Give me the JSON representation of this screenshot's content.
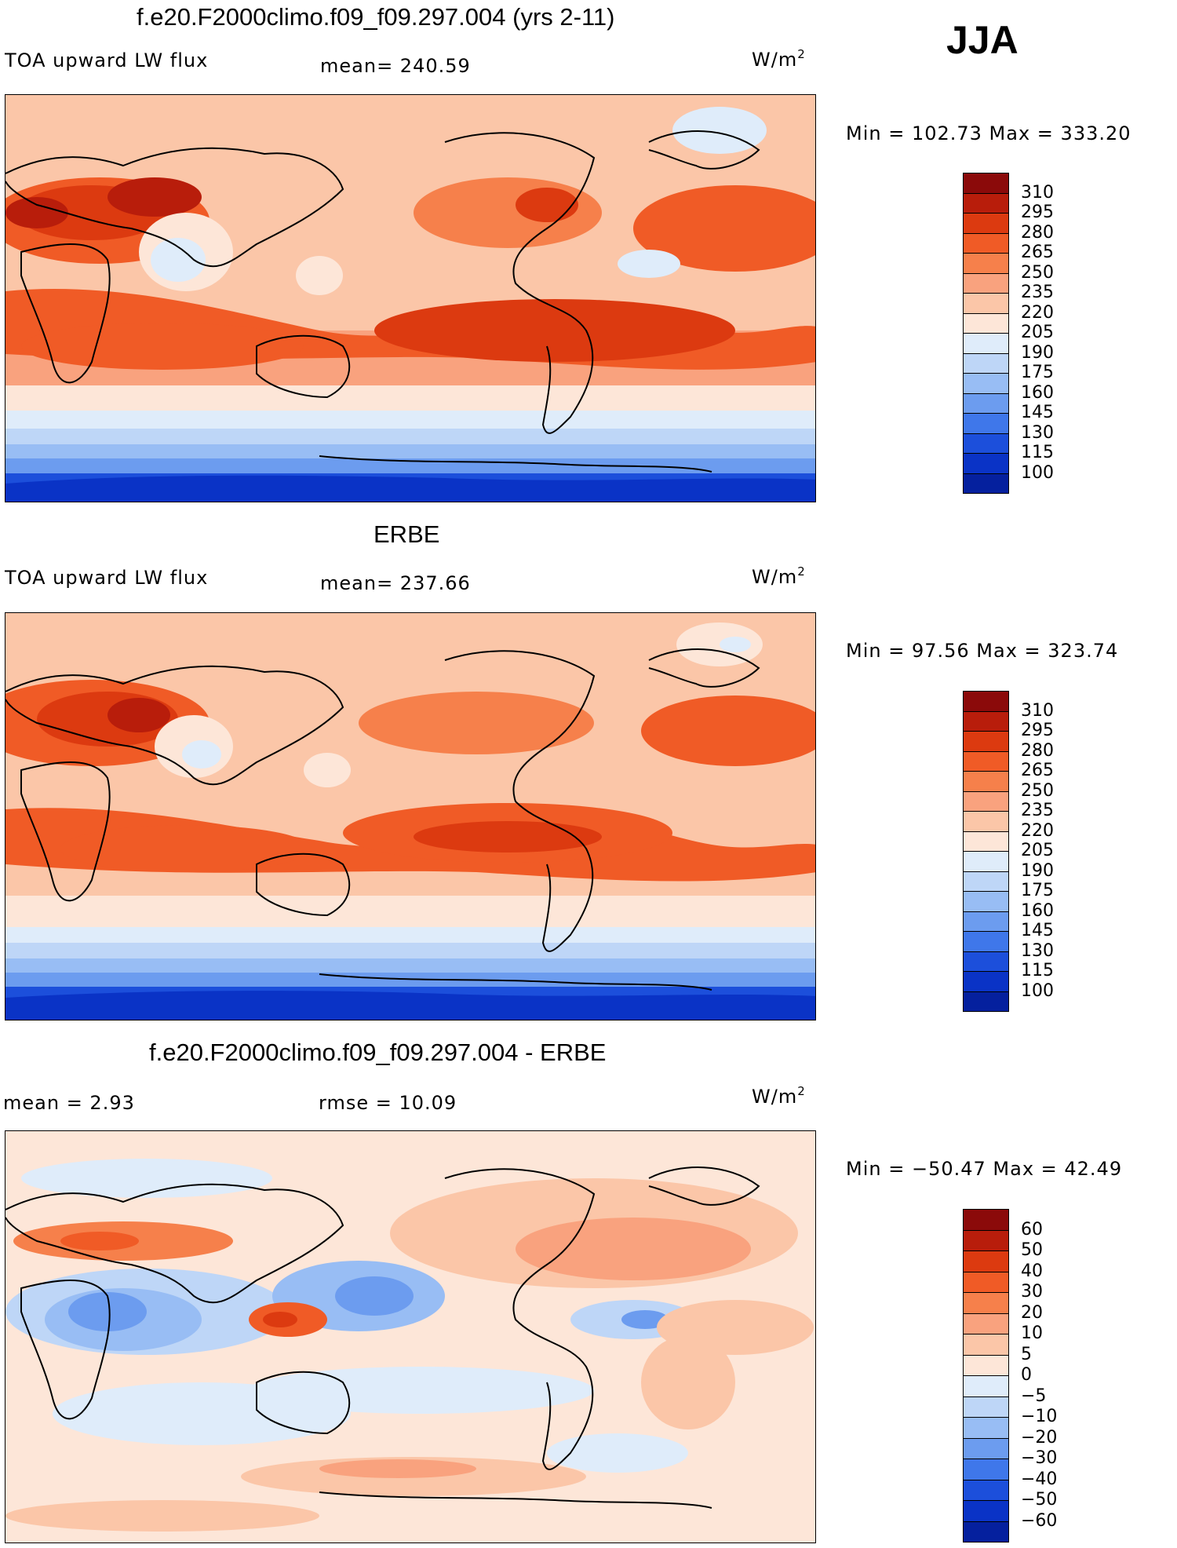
{
  "season": "JJA",
  "panels": [
    {
      "id": "model",
      "title": "f.e20.F2000climo.f09_f09.297.004 (yrs 2-11)",
      "left_label": "TOA upward LW flux",
      "mid_label": "mean= 240.59",
      "units_base": "W/m",
      "units_exp": "2",
      "minmax": "Min =  102.73 Max =  333.20",
      "levels": [
        "310",
        "295",
        "280",
        "265",
        "250",
        "235",
        "220",
        "205",
        "190",
        "175",
        "160",
        "145",
        "130",
        "115",
        "100"
      ],
      "colors": [
        "#8b0a0a",
        "#b81d0b",
        "#dc3a10",
        "#f05b26",
        "#f6804b",
        "#f9a27e",
        "#fbc6a8",
        "#fde6d8",
        "#dfecfa",
        "#bed6f7",
        "#98bdf4",
        "#6c9cef",
        "#3f77ea",
        "#1c4fdb",
        "#0a33c6",
        "#05209e"
      ]
    },
    {
      "id": "obs",
      "title": "ERBE",
      "left_label": "TOA upward LW flux",
      "mid_label": "mean= 237.66",
      "units_base": "W/m",
      "units_exp": "2",
      "minmax": "Min =   97.56 Max =  323.74",
      "levels": [
        "310",
        "295",
        "280",
        "265",
        "250",
        "235",
        "220",
        "205",
        "190",
        "175",
        "160",
        "145",
        "130",
        "115",
        "100"
      ],
      "colors": [
        "#8b0a0a",
        "#b81d0b",
        "#dc3a10",
        "#f05b26",
        "#f6804b",
        "#f9a27e",
        "#fbc6a8",
        "#fde6d8",
        "#dfecfa",
        "#bed6f7",
        "#98bdf4",
        "#6c9cef",
        "#3f77ea",
        "#1c4fdb",
        "#0a33c6",
        "#05209e"
      ]
    },
    {
      "id": "diff",
      "title": "f.e20.F2000climo.f09_f09.297.004 - ERBE",
      "left_label": "mean =     2.93",
      "mid_label": "rmse =    10.09",
      "units_base": "W/m",
      "units_exp": "2",
      "minmax": "Min = −50.47 Max =   42.49",
      "levels": [
        "60",
        "50",
        "40",
        "30",
        "20",
        "10",
        "5",
        "0",
        "−5",
        "−10",
        "−20",
        "−30",
        "−40",
        "−50",
        "−60"
      ],
      "colors": [
        "#8b0a0a",
        "#b81d0b",
        "#dc3a10",
        "#f05b26",
        "#f6804b",
        "#f9a27e",
        "#fbc6a8",
        "#fde6d8",
        "#dfecfa",
        "#bed6f7",
        "#98bdf4",
        "#6c9cef",
        "#3f77ea",
        "#1c4fdb",
        "#0a33c6",
        "#05209e"
      ]
    }
  ]
}
